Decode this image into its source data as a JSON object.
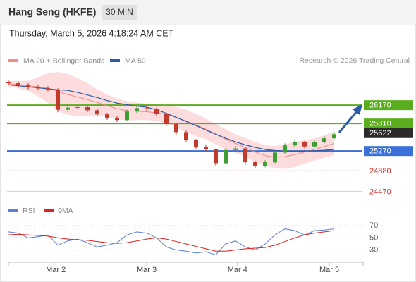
{
  "chart_data": {
    "type": "candlestick",
    "title": "Hang Seng (HKFE)",
    "interval": "30 MIN",
    "timestamp": "Thursday, March 5, 2026 4:18:24 AM CET",
    "credit": "Research © 2026 Trading Central",
    "ylim": [
      24290,
      26850
    ],
    "xticks": [
      {
        "value": 4.8,
        "label": "Mar 2"
      },
      {
        "value": 14,
        "label": "Mar 3"
      },
      {
        "value": 23.2,
        "label": "Mar 4"
      },
      {
        "value": 32.5,
        "label": "Mar 5"
      }
    ],
    "up_color": "#3c9e34",
    "down_color": "#c23a2c",
    "candles": {
      "open": [
        26620,
        26600,
        26560,
        26516,
        26500,
        26480,
        26080,
        26120,
        26130,
        26070,
        25990,
        25920,
        25880,
        26045,
        26110,
        26090,
        26000,
        25800,
        25640,
        25480,
        25350,
        25300,
        25030,
        25290,
        25320,
        25050,
        24980,
        25050,
        25240,
        25380,
        25440,
        25360,
        25450,
        25520
      ],
      "high": [
        26660,
        26640,
        26600,
        26560,
        26540,
        26500,
        26170,
        26180,
        26160,
        26100,
        26020,
        25950,
        26080,
        26150,
        26150,
        26120,
        26020,
        25830,
        25670,
        25510,
        25400,
        25320,
        25330,
        25370,
        25340,
        25080,
        25090,
        25270,
        25420,
        25480,
        25470,
        25490,
        25560,
        25650
      ],
      "low": [
        26560,
        26520,
        26480,
        26460,
        26440,
        26030,
        26040,
        26090,
        26030,
        25950,
        25880,
        25840,
        25860,
        26020,
        26050,
        25960,
        25760,
        25600,
        25440,
        25310,
        25260,
        24980,
        25010,
        25260,
        25000,
        24940,
        24950,
        25030,
        25220,
        25350,
        25320,
        25340,
        25420,
        25500
      ],
      "close": [
        26600,
        26560,
        26516,
        26500,
        26480,
        26080,
        26120,
        26130,
        26070,
        25990,
        25920,
        25880,
        26045,
        26110,
        26090,
        26000,
        25800,
        25640,
        25480,
        25350,
        25300,
        25030,
        25290,
        25320,
        25050,
        24980,
        25050,
        25240,
        25380,
        25440,
        25360,
        25450,
        25520,
        25600
      ]
    },
    "series": [
      {
        "name": "MA 20 + Bollinger Bands",
        "color": "#f08a8a",
        "band_color": "#fbd3d3",
        "values": [
          26590,
          26570,
          26550,
          26530,
          26510,
          26440,
          26380,
          26330,
          26280,
          26220,
          26160,
          26100,
          26060,
          26050,
          26040,
          26020,
          25990,
          25930,
          25860,
          25780,
          25700,
          25600,
          25500,
          25420,
          25340,
          25250,
          25180,
          25150,
          25160,
          25200,
          25250,
          25300,
          25360,
          25420
        ],
        "upper": [
          26640,
          26640,
          26650,
          26720,
          26800,
          26820,
          26780,
          26700,
          26600,
          26480,
          26380,
          26300,
          26250,
          26220,
          26200,
          26180,
          26170,
          26130,
          26080,
          26000,
          25900,
          25800,
          25700,
          25600,
          25520,
          25450,
          25380,
          25370,
          25400,
          25450,
          25480,
          25520,
          25580,
          25650
        ],
        "lower": [
          26540,
          26500,
          26450,
          26340,
          26220,
          26060,
          25980,
          25960,
          25960,
          25960,
          25940,
          25900,
          25870,
          25880,
          25880,
          25860,
          25810,
          25730,
          25640,
          25560,
          25500,
          25400,
          25300,
          25240,
          25160,
          25050,
          24980,
          24930,
          24920,
          24950,
          25020,
          25080,
          25140,
          25190
        ]
      },
      {
        "name": "MA 50",
        "color": "#2a5ba8",
        "values": [
          26570,
          26550,
          26530,
          26510,
          26490,
          26470,
          26460,
          26420,
          26370,
          26320,
          26260,
          26210,
          26180,
          26150,
          26130,
          26080,
          26010,
          25930,
          25850,
          25770,
          25680,
          25600,
          25520,
          25450,
          25390,
          25340,
          25300,
          25280,
          25270,
          25270,
          25270,
          25275,
          25285,
          25300
        ]
      }
    ],
    "levels": [
      {
        "value": 26170,
        "color": "#5aad1c",
        "style": "box"
      },
      {
        "value": 25810,
        "color": "#5aad1c",
        "style": "box"
      },
      {
        "value": 25270,
        "color": "#3a70d8",
        "style": "box"
      },
      {
        "value": 24880,
        "color": "#f08a8a",
        "style": "text"
      },
      {
        "value": 24470,
        "color": "#f08a8a",
        "style": "text"
      }
    ],
    "last": {
      "value": 25622,
      "color": "#2b2b2b"
    },
    "rsi": {
      "ylim": [
        12,
        82
      ],
      "yticks": [
        70,
        50,
        30
      ],
      "series": [
        {
          "name": "RSI",
          "color": "#5b7fd6",
          "values": [
            60,
            58,
            50,
            52,
            55,
            38,
            45,
            48,
            42,
            35,
            38,
            42,
            55,
            60,
            58,
            50,
            35,
            30,
            28,
            25,
            27,
            22,
            40,
            45,
            35,
            30,
            40,
            55,
            65,
            62,
            55,
            62,
            63,
            65
          ]
        },
        {
          "name": "9MA",
          "color": "#e02020",
          "values": [
            55,
            56,
            55,
            54,
            53,
            50,
            48,
            47,
            46,
            44,
            42,
            41,
            42,
            45,
            48,
            50,
            48,
            44,
            40,
            36,
            32,
            28,
            28,
            30,
            32,
            33,
            34,
            38,
            44,
            50,
            55,
            58,
            60,
            62
          ]
        }
      ]
    }
  }
}
